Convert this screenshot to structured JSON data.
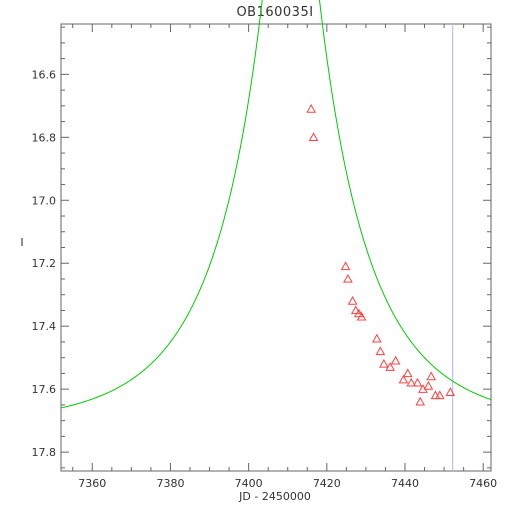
{
  "chart_data": {
    "type": "scatter",
    "title": "OB160035I",
    "xlabel": "JD - 2450000",
    "ylabel": "I",
    "xlim": [
      7352,
      7462
    ],
    "ylim": [
      17.86,
      16.44
    ],
    "y_inverted": true,
    "x_ticks": [
      7360,
      7380,
      7400,
      7420,
      7440,
      7460
    ],
    "y_ticks": [
      16.6,
      16.8,
      17.0,
      17.2,
      17.4,
      17.6,
      17.8
    ],
    "y_tick_labels": [
      "16.6",
      "16.8",
      "17.0",
      "17.2",
      "17.4",
      "17.6",
      "17.8"
    ],
    "x_minor_step": 5,
    "y_minor_step": 0.05,
    "grid": false,
    "vertical_line": {
      "x": 7452.2,
      "color": "#b0b0ff"
    },
    "model": {
      "name": "model fit",
      "color": "#00cc00",
      "t0": 7410.8,
      "u0": 0.1445,
      "tE": 28.2,
      "I_base": 17.716,
      "x_range": [
        7352,
        7462
      ]
    },
    "observations": {
      "color": "#ff4040",
      "marker": "triangle-open",
      "points": [
        {
          "x": 7416.0,
          "y": 16.71
        },
        {
          "x": 7416.6,
          "y": 16.8
        },
        {
          "x": 7424.8,
          "y": 17.21
        },
        {
          "x": 7425.4,
          "y": 17.25
        },
        {
          "x": 7426.6,
          "y": 17.32
        },
        {
          "x": 7427.4,
          "y": 17.35
        },
        {
          "x": 7428.2,
          "y": 17.36
        },
        {
          "x": 7428.9,
          "y": 17.37
        },
        {
          "x": 7432.8,
          "y": 17.44
        },
        {
          "x": 7433.7,
          "y": 17.48
        },
        {
          "x": 7434.6,
          "y": 17.52
        },
        {
          "x": 7436.2,
          "y": 17.53
        },
        {
          "x": 7437.6,
          "y": 17.51
        },
        {
          "x": 7439.6,
          "y": 17.57
        },
        {
          "x": 7440.7,
          "y": 17.55
        },
        {
          "x": 7441.6,
          "y": 17.58
        },
        {
          "x": 7443.2,
          "y": 17.58
        },
        {
          "x": 7443.9,
          "y": 17.64
        },
        {
          "x": 7444.6,
          "y": 17.6
        },
        {
          "x": 7446.0,
          "y": 17.59
        },
        {
          "x": 7446.7,
          "y": 17.56
        },
        {
          "x": 7447.8,
          "y": 17.62
        },
        {
          "x": 7448.9,
          "y": 17.62
        },
        {
          "x": 7451.6,
          "y": 17.61
        }
      ]
    }
  }
}
